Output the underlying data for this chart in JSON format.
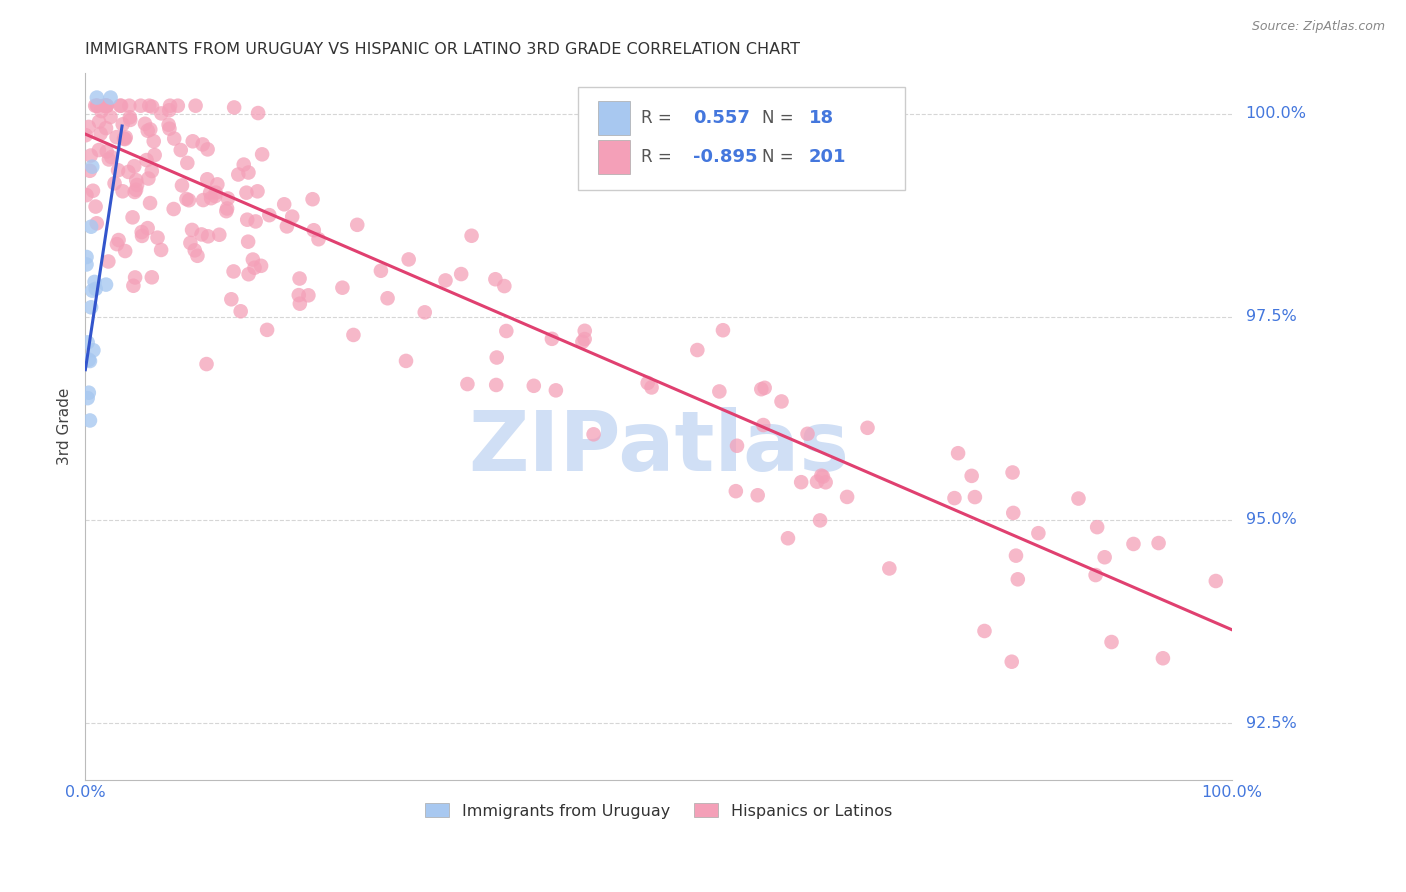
{
  "title": "IMMIGRANTS FROM URUGUAY VS HISPANIC OR LATINO 3RD GRADE CORRELATION CHART",
  "source": "Source: ZipAtlas.com",
  "ylabel": "3rd Grade",
  "legend_blue_r": "0.557",
  "legend_blue_n": "18",
  "legend_pink_r": "-0.895",
  "legend_pink_n": "201",
  "blue_color": "#a8c8f0",
  "pink_color": "#f4a0b8",
  "blue_line_color": "#3355cc",
  "pink_line_color": "#e04070",
  "tick_label_color": "#4477dd",
  "watermark_color": "#d0dff5",
  "background_color": "#ffffff",
  "grid_color": "#cccccc",
  "title_color": "#333333",
  "pink_line_x": [
    0.0,
    1.0
  ],
  "pink_line_y": [
    0.9975,
    0.9365
  ],
  "blue_line_x": [
    0.0,
    0.032
  ],
  "blue_line_y": [
    0.9685,
    0.9985
  ],
  "xlim": [
    0.0,
    1.0
  ],
  "ylim": [
    0.918,
    1.005
  ],
  "ytick_vals": [
    1.0,
    0.975,
    0.95,
    0.925
  ],
  "ytick_labels": [
    "100.0%",
    "97.5%",
    "95.0%",
    "92.5%"
  ],
  "figsize": [
    14.06,
    8.92
  ],
  "dpi": 100
}
